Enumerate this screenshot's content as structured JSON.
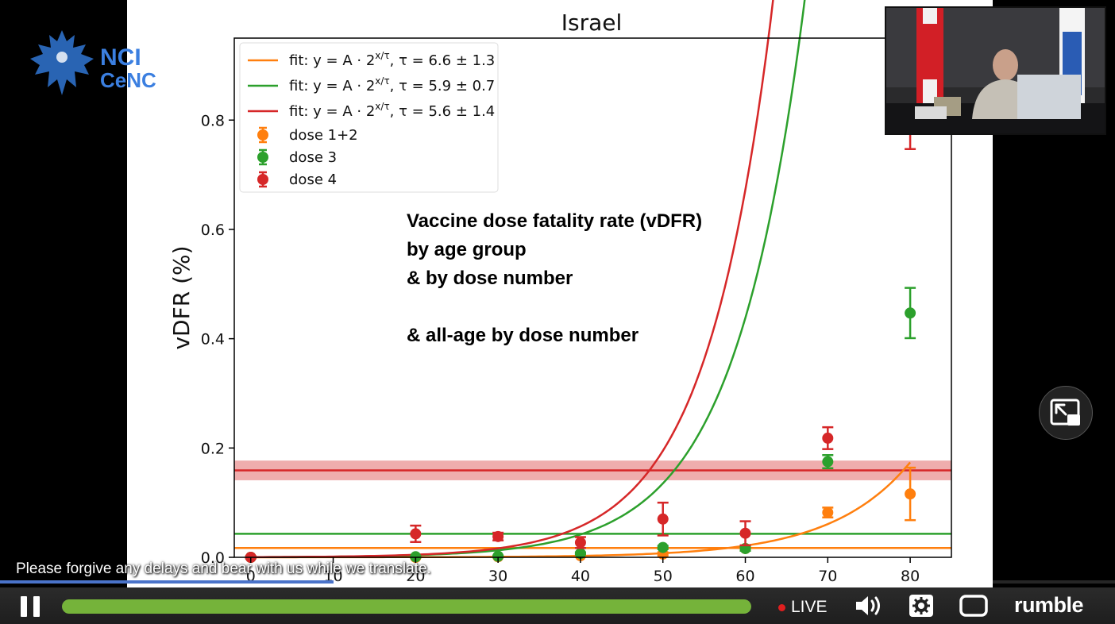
{
  "chart_data": {
    "type": "scatter",
    "title": "Israel",
    "xlabel": "",
    "ylabel": "vDFR (%)",
    "xlim": [
      -2,
      85
    ],
    "ylim": [
      0.0,
      0.95
    ],
    "x_ticks": [
      0,
      10,
      20,
      30,
      40,
      50,
      60,
      70,
      80
    ],
    "x_tick_labels": [
      "0",
      "10",
      "20",
      "30",
      "40",
      "50",
      "60",
      "70",
      "80"
    ],
    "y_ticks": [
      0.0,
      0.2,
      0.4,
      0.6,
      0.8
    ],
    "y_tick_labels": [
      "0.0",
      "0.2",
      "0.4",
      "0.6",
      "0.8"
    ],
    "legend_position": "top-left",
    "grid": false,
    "fits": [
      {
        "name_prefix": "fit: ",
        "name_formula": "y = A · 2",
        "name_exponent": "x/τ",
        "name_suffix": ", τ = 6.6 ± 1.3",
        "color": "#ff7f0e",
        "A": 3.9e-05,
        "tau": 6.6
      },
      {
        "name_prefix": "fit: ",
        "name_formula": "y = A · 2",
        "name_exponent": "x/τ",
        "name_suffix": ", τ = 5.9 ± 0.7",
        "color": "#2ca02c",
        "A": 0.00038,
        "tau": 5.9
      },
      {
        "name_prefix": "fit: ",
        "name_formula": "y = A · 2",
        "name_exponent": "x/τ",
        "name_suffix": ", τ = 5.6 ± 1.4",
        "color": "#d62728",
        "A": 0.0004,
        "tau": 5.6
      }
    ],
    "series": [
      {
        "name": "dose 1+2",
        "color": "#ff7f0e",
        "x": [
          0,
          20,
          30,
          40,
          50,
          60,
          70,
          80
        ],
        "y": [
          0.0,
          0.0,
          0.001,
          0.003,
          0.006,
          0.016,
          0.082,
          0.116
        ],
        "err": [
          0.001,
          0.001,
          0.001,
          0.002,
          0.003,
          0.004,
          0.009,
          0.048
        ],
        "hline": 0.017
      },
      {
        "name": "dose 3",
        "color": "#2ca02c",
        "x": [
          0,
          20,
          30,
          40,
          50,
          60,
          70,
          80
        ],
        "y": [
          0.0,
          0.001,
          0.002,
          0.007,
          0.018,
          0.016,
          0.175,
          0.447
        ],
        "err": [
          0.001,
          0.001,
          0.001,
          0.002,
          0.003,
          0.004,
          0.012,
          0.046
        ],
        "hline": 0.043
      },
      {
        "name": "dose 4",
        "color": "#d62728",
        "x": [
          0,
          20,
          30,
          40,
          50,
          60,
          70,
          80
        ],
        "y": [
          0.0,
          0.043,
          0.038,
          0.027,
          0.07,
          0.044,
          0.218,
          0.812
        ],
        "err": [
          0.002,
          0.015,
          0.007,
          0.01,
          0.03,
          0.022,
          0.02,
          0.065
        ],
        "hline": 0.159,
        "band": [
          0.141,
          0.177
        ]
      }
    ],
    "annotations": [
      "Vaccine dose fatality rate (vDFR)",
      "by age group",
      "& by dose number",
      "",
      "& all-age by dose number"
    ]
  },
  "logo": {
    "brand": "NCI CeNC"
  },
  "player": {
    "subtitle": "Please forgive any delays and bear with us while we translate.",
    "live_label": "LIVE",
    "brand": "rumble",
    "progress": 1.0,
    "colors": {
      "seek": "#75b33a",
      "live_dot": "#e01f1f"
    },
    "icons": [
      "pause-icon",
      "volume-icon",
      "settings-icon",
      "fullscreen-icon",
      "pip-expand-icon"
    ]
  }
}
